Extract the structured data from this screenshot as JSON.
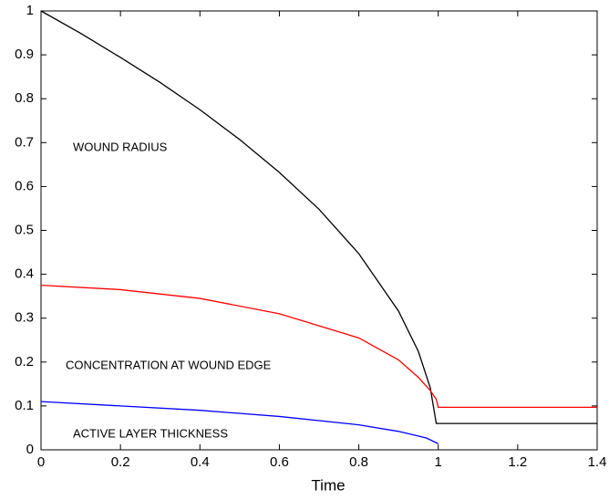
{
  "chart_data": {
    "type": "line",
    "x_label": "Time",
    "xlim": [
      0,
      1.4
    ],
    "ylim": [
      0,
      1
    ],
    "xticks": [
      0,
      0.2,
      0.4,
      0.6,
      0.8,
      1,
      1.2,
      1.4
    ],
    "yticks": [
      0,
      0.1,
      0.2,
      0.3,
      0.4,
      0.5,
      0.6,
      0.7,
      0.8,
      0.9,
      1
    ],
    "series": [
      {
        "name": "WOUND RADIUS",
        "color": "#000000",
        "x": [
          0,
          0.1,
          0.2,
          0.3,
          0.4,
          0.5,
          0.6,
          0.7,
          0.8,
          0.9,
          0.95,
          0.98,
          0.995,
          1.4
        ],
        "values": [
          1,
          0.949,
          0.894,
          0.837,
          0.775,
          0.707,
          0.632,
          0.548,
          0.447,
          0.316,
          0.224,
          0.141,
          0.06,
          0.06
        ]
      },
      {
        "name": "CONCENTRATION AT WOUND EDGE",
        "color": "#ff0000",
        "x": [
          0,
          0.2,
          0.4,
          0.6,
          0.8,
          0.9,
          0.95,
          0.98,
          0.995,
          1.0,
          1.4
        ],
        "values": [
          0.375,
          0.365,
          0.345,
          0.31,
          0.255,
          0.205,
          0.165,
          0.135,
          0.115,
          0.097,
          0.097
        ]
      },
      {
        "name": "ACTIVE LAYER THICKNESS",
        "color": "#0000ff",
        "x": [
          0,
          0.2,
          0.4,
          0.6,
          0.8,
          0.9,
          0.97,
          1.0
        ],
        "values": [
          0.11,
          0.1,
          0.09,
          0.076,
          0.057,
          0.042,
          0.027,
          0.014
        ]
      }
    ]
  }
}
